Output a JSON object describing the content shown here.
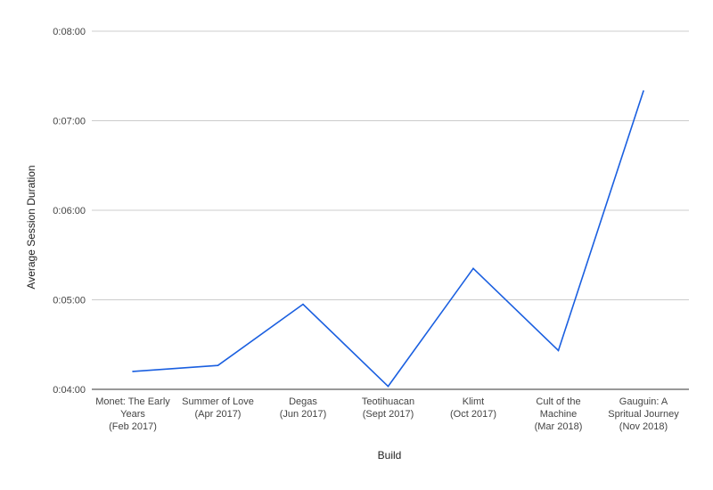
{
  "chart_data": {
    "type": "line",
    "xlabel": "Build",
    "ylabel": "Average Session Duration",
    "y_ticks": [
      "0:04:00",
      "0:05:00",
      "0:06:00",
      "0:07:00",
      "0:08:00"
    ],
    "ylim_seconds": [
      240,
      480
    ],
    "grid": true,
    "categories": [
      [
        "Monet: The Early",
        "Years",
        "(Feb 2017)"
      ],
      [
        "Summer of Love",
        "(Apr 2017)"
      ],
      [
        "Degas",
        "(Jun 2017)"
      ],
      [
        "Teotihuacan",
        "(Sept 2017)"
      ],
      [
        "Klimt",
        "(Oct 2017)"
      ],
      [
        "Cult of the",
        "Machine",
        "(Mar 2018)"
      ],
      [
        "Gauguin: A",
        "Spritual Journey",
        "(Nov 2018)"
      ]
    ],
    "series": [
      {
        "color": "#1a5fe0",
        "values_seconds": [
          252,
          256,
          297,
          242,
          321,
          266,
          440
        ]
      }
    ]
  }
}
